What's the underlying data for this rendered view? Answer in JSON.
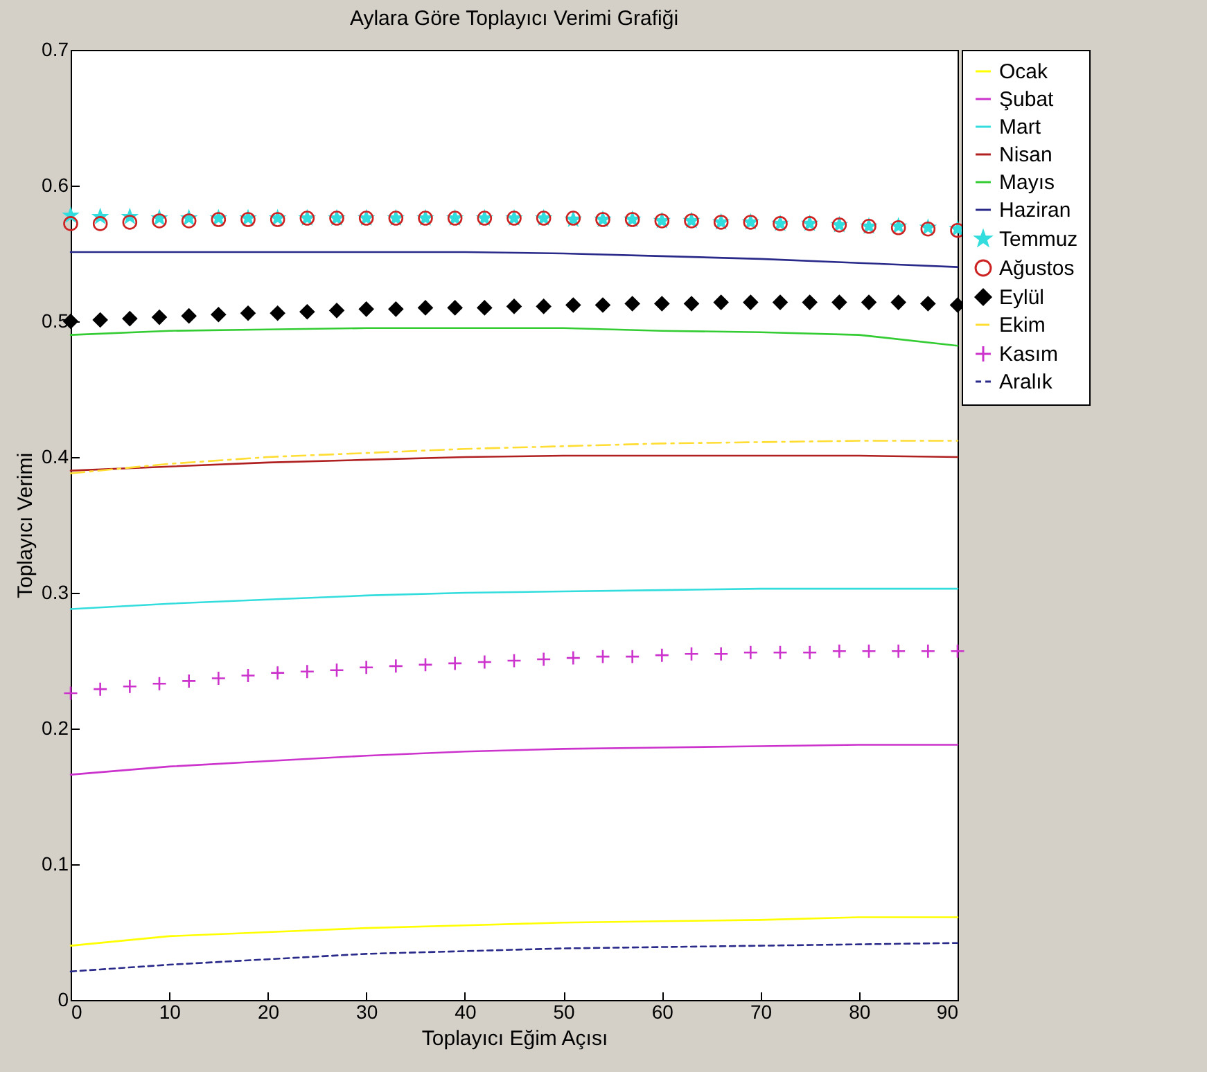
{
  "chart_data": {
    "type": "line",
    "title": "Aylara Göre Toplayıcı Verimi Grafiği",
    "xlabel": "Toplayıcı Eğim Açısı",
    "ylabel": "Toplayıcı Verimi",
    "x": [
      0,
      10,
      20,
      30,
      40,
      50,
      60,
      70,
      80,
      90
    ],
    "xlim": [
      0,
      90
    ],
    "xticks": [
      0,
      10,
      20,
      30,
      40,
      50,
      60,
      70,
      80,
      90
    ],
    "ylim": [
      0,
      0.7
    ],
    "yticks": [
      0,
      0.1,
      0.2,
      0.3,
      0.4,
      0.5,
      0.6,
      0.7
    ],
    "grid": false,
    "legend": "top right",
    "series": [
      {
        "name": "Ocak",
        "color": "#ffff00",
        "line_style": "solid",
        "values": [
          0.04,
          0.047,
          0.05,
          0.053,
          0.055,
          0.057,
          0.058,
          0.059,
          0.061,
          0.061
        ]
      },
      {
        "name": "Şubat",
        "color": "#cc33cc",
        "line_style": "solid",
        "values": [
          0.166,
          0.172,
          0.176,
          0.18,
          0.183,
          0.185,
          0.186,
          0.187,
          0.188,
          0.188
        ]
      },
      {
        "name": "Mart",
        "color": "#33dddd",
        "line_style": "solid",
        "values": [
          0.288,
          0.292,
          0.295,
          0.298,
          0.3,
          0.301,
          0.302,
          0.303,
          0.303,
          0.303
        ]
      },
      {
        "name": "Nisan",
        "color": "#b02020",
        "line_style": "solid",
        "values": [
          0.39,
          0.393,
          0.396,
          0.398,
          0.4,
          0.401,
          0.401,
          0.401,
          0.401,
          0.4
        ]
      },
      {
        "name": "Mayıs",
        "color": "#33cc33",
        "line_style": "solid",
        "values": [
          0.49,
          0.493,
          0.494,
          0.495,
          0.495,
          0.495,
          0.493,
          0.492,
          0.49,
          0.482
        ]
      },
      {
        "name": "Haziran",
        "color": "#2a2a8a",
        "line_style": "solid",
        "values": [
          0.551,
          0.551,
          0.551,
          0.551,
          0.551,
          0.55,
          0.548,
          0.546,
          0.543,
          0.54
        ]
      },
      {
        "name": "Temmuz",
        "color": "#33dddd",
        "type": "scatter",
        "marker": "star",
        "x": [
          0,
          3,
          6,
          9,
          12,
          15,
          18,
          21,
          24,
          27,
          30,
          33,
          36,
          39,
          42,
          45,
          48,
          51,
          54,
          57,
          60,
          63,
          66,
          69,
          72,
          75,
          78,
          81,
          84,
          87,
          90
        ],
        "values": [
          0.578,
          0.577,
          0.577,
          0.576,
          0.576,
          0.576,
          0.576,
          0.576,
          0.576,
          0.576,
          0.576,
          0.576,
          0.576,
          0.576,
          0.576,
          0.576,
          0.576,
          0.575,
          0.575,
          0.575,
          0.574,
          0.574,
          0.573,
          0.573,
          0.572,
          0.572,
          0.571,
          0.57,
          0.57,
          0.569,
          0.568
        ]
      },
      {
        "name": "Ağustos",
        "color": "#cc2222",
        "type": "scatter",
        "marker": "circle",
        "x": [
          0,
          3,
          6,
          9,
          12,
          15,
          18,
          21,
          24,
          27,
          30,
          33,
          36,
          39,
          42,
          45,
          48,
          51,
          54,
          57,
          60,
          63,
          66,
          69,
          72,
          75,
          78,
          81,
          84,
          87,
          90
        ],
        "values": [
          0.572,
          0.572,
          0.573,
          0.574,
          0.574,
          0.575,
          0.575,
          0.575,
          0.576,
          0.576,
          0.576,
          0.576,
          0.576,
          0.576,
          0.576,
          0.576,
          0.576,
          0.576,
          0.575,
          0.575,
          0.574,
          0.574,
          0.573,
          0.573,
          0.572,
          0.572,
          0.571,
          0.57,
          0.569,
          0.568,
          0.567
        ]
      },
      {
        "name": "Eylül",
        "color": "#000000",
        "type": "scatter",
        "marker": "diamond",
        "x": [
          0,
          3,
          6,
          9,
          12,
          15,
          18,
          21,
          24,
          27,
          30,
          33,
          36,
          39,
          42,
          45,
          48,
          51,
          54,
          57,
          60,
          63,
          66,
          69,
          72,
          75,
          78,
          81,
          84,
          87,
          90
        ],
        "values": [
          0.5,
          0.501,
          0.502,
          0.503,
          0.504,
          0.505,
          0.506,
          0.506,
          0.507,
          0.508,
          0.509,
          0.509,
          0.51,
          0.51,
          0.51,
          0.511,
          0.511,
          0.512,
          0.512,
          0.513,
          0.513,
          0.513,
          0.514,
          0.514,
          0.514,
          0.514,
          0.514,
          0.514,
          0.514,
          0.513,
          0.512
        ]
      },
      {
        "name": "Ekim",
        "color": "#ffdd33",
        "line_style": "dashed",
        "values": [
          0.388,
          0.395,
          0.4,
          0.403,
          0.406,
          0.408,
          0.41,
          0.411,
          0.412,
          0.412
        ]
      },
      {
        "name": "Kasım",
        "color": "#cc33cc",
        "type": "scatter",
        "marker": "cross",
        "x": [
          0,
          3,
          6,
          9,
          12,
          15,
          18,
          21,
          24,
          27,
          30,
          33,
          36,
          39,
          42,
          45,
          48,
          51,
          54,
          57,
          60,
          63,
          66,
          69,
          72,
          75,
          78,
          81,
          84,
          87,
          90
        ],
        "values": [
          0.226,
          0.229,
          0.231,
          0.233,
          0.235,
          0.237,
          0.239,
          0.241,
          0.242,
          0.243,
          0.245,
          0.246,
          0.247,
          0.248,
          0.249,
          0.25,
          0.251,
          0.252,
          0.253,
          0.253,
          0.254,
          0.255,
          0.255,
          0.256,
          0.256,
          0.256,
          0.257,
          0.257,
          0.257,
          0.257,
          0.257
        ]
      },
      {
        "name": "Aralık",
        "color": "#2a2a8a",
        "line_style": "dotted",
        "values": [
          0.021,
          0.026,
          0.03,
          0.034,
          0.036,
          0.038,
          0.039,
          0.04,
          0.041,
          0.042
        ]
      }
    ]
  }
}
